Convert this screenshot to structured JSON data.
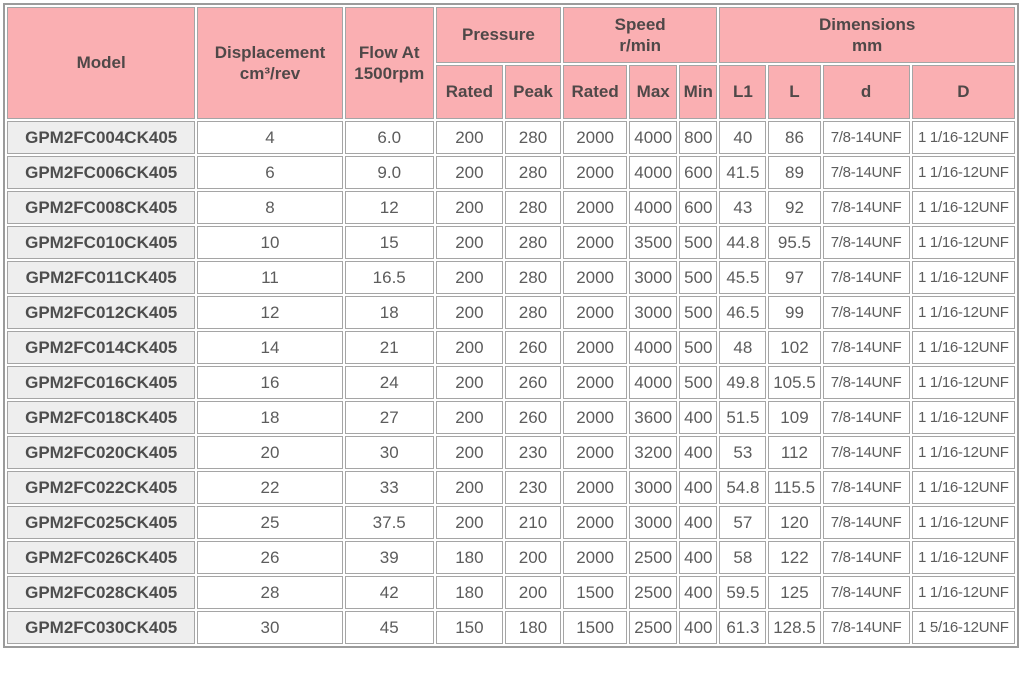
{
  "table": {
    "title_semantic": "Gear pump specification table",
    "header": {
      "model": "Model",
      "displacement_line1": "Displacement",
      "displacement_line2": "cm³/rev",
      "flow_line1": "Flow At",
      "flow_line2": "1500rpm",
      "pressure": "Pressure",
      "speed_line1": "Speed",
      "speed_line2": "r/min",
      "dimensions_line1": "Dimensions",
      "dimensions_line2": "mm",
      "pressure_rated": "Rated",
      "pressure_peak": "Peak",
      "speed_rated": "Rated",
      "speed_max": "Max",
      "speed_min": "Min",
      "l1": "L1",
      "l": "L",
      "d": "d",
      "D": "D"
    },
    "row_field_order": [
      "model",
      "displacement",
      "flow",
      "pressure_rated",
      "pressure_peak",
      "speed_rated",
      "speed_max",
      "speed_min",
      "l1",
      "l",
      "d",
      "D"
    ],
    "rows": [
      {
        "model": "GPM2FC004CK405",
        "displacement": "4",
        "flow": "6.0",
        "pressure_rated": "200",
        "pressure_peak": "280",
        "speed_rated": "2000",
        "speed_max": "4000",
        "speed_min": "800",
        "l1": "40",
        "l": "86",
        "d": "7/8-14UNF",
        "D": "1 1/16-12UNF"
      },
      {
        "model": "GPM2FC006CK405",
        "displacement": "6",
        "flow": "9.0",
        "pressure_rated": "200",
        "pressure_peak": "280",
        "speed_rated": "2000",
        "speed_max": "4000",
        "speed_min": "600",
        "l1": "41.5",
        "l": "89",
        "d": "7/8-14UNF",
        "D": "1 1/16-12UNF"
      },
      {
        "model": "GPM2FC008CK405",
        "displacement": "8",
        "flow": "12",
        "pressure_rated": "200",
        "pressure_peak": "280",
        "speed_rated": "2000",
        "speed_max": "4000",
        "speed_min": "600",
        "l1": "43",
        "l": "92",
        "d": "7/8-14UNF",
        "D": "1 1/16-12UNF"
      },
      {
        "model": "GPM2FC010CK405",
        "displacement": "10",
        "flow": "15",
        "pressure_rated": "200",
        "pressure_peak": "280",
        "speed_rated": "2000",
        "speed_max": "3500",
        "speed_min": "500",
        "l1": "44.8",
        "l": "95.5",
        "d": "7/8-14UNF",
        "D": "1 1/16-12UNF"
      },
      {
        "model": "GPM2FC011CK405",
        "displacement": "11",
        "flow": "16.5",
        "pressure_rated": "200",
        "pressure_peak": "280",
        "speed_rated": "2000",
        "speed_max": "3000",
        "speed_min": "500",
        "l1": "45.5",
        "l": "97",
        "d": "7/8-14UNF",
        "D": "1 1/16-12UNF"
      },
      {
        "model": "GPM2FC012CK405",
        "displacement": "12",
        "flow": "18",
        "pressure_rated": "200",
        "pressure_peak": "280",
        "speed_rated": "2000",
        "speed_max": "3000",
        "speed_min": "500",
        "l1": "46.5",
        "l": "99",
        "d": "7/8-14UNF",
        "D": "1 1/16-12UNF"
      },
      {
        "model": "GPM2FC014CK405",
        "displacement": "14",
        "flow": "21",
        "pressure_rated": "200",
        "pressure_peak": "260",
        "speed_rated": "2000",
        "speed_max": "4000",
        "speed_min": "500",
        "l1": "48",
        "l": "102",
        "d": "7/8-14UNF",
        "D": "1 1/16-12UNF"
      },
      {
        "model": "GPM2FC016CK405",
        "displacement": "16",
        "flow": "24",
        "pressure_rated": "200",
        "pressure_peak": "260",
        "speed_rated": "2000",
        "speed_max": "4000",
        "speed_min": "500",
        "l1": "49.8",
        "l": "105.5",
        "d": "7/8-14UNF",
        "D": "1 1/16-12UNF"
      },
      {
        "model": "GPM2FC018CK405",
        "displacement": "18",
        "flow": "27",
        "pressure_rated": "200",
        "pressure_peak": "260",
        "speed_rated": "2000",
        "speed_max": "3600",
        "speed_min": "400",
        "l1": "51.5",
        "l": "109",
        "d": "7/8-14UNF",
        "D": "1 1/16-12UNF"
      },
      {
        "model": "GPM2FC020CK405",
        "displacement": "20",
        "flow": "30",
        "pressure_rated": "200",
        "pressure_peak": "230",
        "speed_rated": "2000",
        "speed_max": "3200",
        "speed_min": "400",
        "l1": "53",
        "l": "112",
        "d": "7/8-14UNF",
        "D": "1 1/16-12UNF"
      },
      {
        "model": "GPM2FC022CK405",
        "displacement": "22",
        "flow": "33",
        "pressure_rated": "200",
        "pressure_peak": "230",
        "speed_rated": "2000",
        "speed_max": "3000",
        "speed_min": "400",
        "l1": "54.8",
        "l": "115.5",
        "d": "7/8-14UNF",
        "D": "1 1/16-12UNF"
      },
      {
        "model": "GPM2FC025CK405",
        "displacement": "25",
        "flow": "37.5",
        "pressure_rated": "200",
        "pressure_peak": "210",
        "speed_rated": "2000",
        "speed_max": "3000",
        "speed_min": "400",
        "l1": "57",
        "l": "120",
        "d": "7/8-14UNF",
        "D": "1 1/16-12UNF"
      },
      {
        "model": "GPM2FC026CK405",
        "displacement": "26",
        "flow": "39",
        "pressure_rated": "180",
        "pressure_peak": "200",
        "speed_rated": "2000",
        "speed_max": "2500",
        "speed_min": "400",
        "l1": "58",
        "l": "122",
        "d": "7/8-14UNF",
        "D": "1 1/16-12UNF"
      },
      {
        "model": "GPM2FC028CK405",
        "displacement": "28",
        "flow": "42",
        "pressure_rated": "180",
        "pressure_peak": "200",
        "speed_rated": "1500",
        "speed_max": "2500",
        "speed_min": "400",
        "l1": "59.5",
        "l": "125",
        "d": "7/8-14UNF",
        "D": "1 1/16-12UNF"
      },
      {
        "model": "GPM2FC030CK405",
        "displacement": "30",
        "flow": "45",
        "pressure_rated": "150",
        "pressure_peak": "180",
        "speed_rated": "1500",
        "speed_max": "2500",
        "speed_min": "400",
        "l1": "61.3",
        "l": "128.5",
        "d": "7/8-14UNF",
        "D": "1 5/16-12UNF"
      }
    ]
  },
  "colors": {
    "header_bg": "#faafb2",
    "model_column_bg": "#eeeeee",
    "cell_border": "#a5a5a5",
    "outer_border": "#9b9b9b",
    "header_text": "#4f4848",
    "data_text": "#5c5c5c"
  }
}
